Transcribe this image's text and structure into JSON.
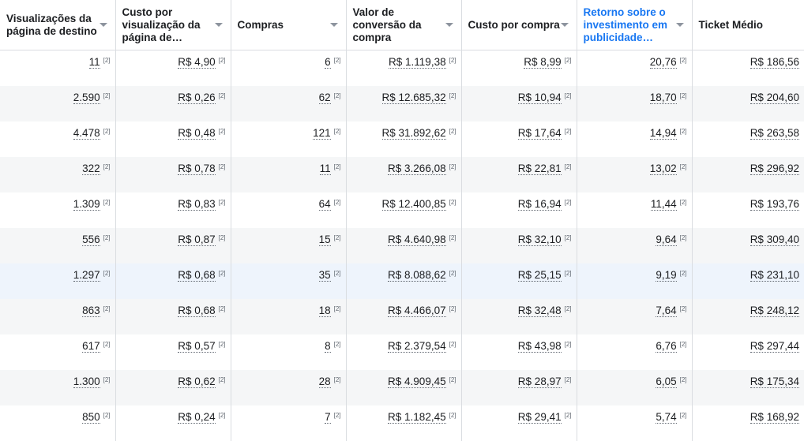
{
  "table": {
    "columns": [
      {
        "label": "Visualizações da página de destino",
        "sorted": false
      },
      {
        "label": "Custo por visualização da página de…",
        "sorted": false
      },
      {
        "label": "Compras",
        "sorted": false
      },
      {
        "label": "Valor de conversão da compra",
        "sorted": false
      },
      {
        "label": "Custo por compra",
        "sorted": false
      },
      {
        "label": "Retorno sobre o investimento em publicidade…",
        "sorted": true
      },
      {
        "label": "Ticket Médio",
        "sorted": false
      }
    ],
    "footnote": "[2]",
    "rows": [
      [
        "11",
        "R$ 4,90",
        "6",
        "R$ 1.119,38",
        "R$ 8,99",
        "20,76",
        "R$ 186,56"
      ],
      [
        "2.590",
        "R$ 0,26",
        "62",
        "R$ 12.685,32",
        "R$ 10,94",
        "18,70",
        "R$ 204,60"
      ],
      [
        "4.478",
        "R$ 0,48",
        "121",
        "R$ 31.892,62",
        "R$ 17,64",
        "14,94",
        "R$ 263,58"
      ],
      [
        "322",
        "R$ 0,78",
        "11",
        "R$ 3.266,08",
        "R$ 22,81",
        "13,02",
        "R$ 296,92"
      ],
      [
        "1.309",
        "R$ 0,83",
        "64",
        "R$ 12.400,85",
        "R$ 16,94",
        "11,44",
        "R$ 193,76"
      ],
      [
        "556",
        "R$ 0,87",
        "15",
        "R$ 4.640,98",
        "R$ 32,10",
        "9,64",
        "R$ 309,40"
      ],
      [
        "1.297",
        "R$ 0,68",
        "35",
        "R$ 8.088,62",
        "R$ 25,15",
        "9,19",
        "R$ 231,10"
      ],
      [
        "863",
        "R$ 0,68",
        "18",
        "R$ 4.466,07",
        "R$ 32,48",
        "7,64",
        "R$ 248,12"
      ],
      [
        "617",
        "R$ 0,57",
        "8",
        "R$ 2.379,54",
        "R$ 43,98",
        "6,76",
        "R$ 297,44"
      ],
      [
        "1.300",
        "R$ 0,62",
        "28",
        "R$ 4.909,45",
        "R$ 28,97",
        "6,05",
        "R$ 175,34"
      ],
      [
        "850",
        "R$ 0,24",
        "7",
        "R$ 1.182,45",
        "R$ 29,41",
        "5,74",
        "R$ 168,92"
      ]
    ],
    "highlighted_row": 6,
    "colors": {
      "sorted_header": "#1877f2",
      "row_alt": "#f5f6f7",
      "row_highlight": "#eef4fc"
    }
  }
}
